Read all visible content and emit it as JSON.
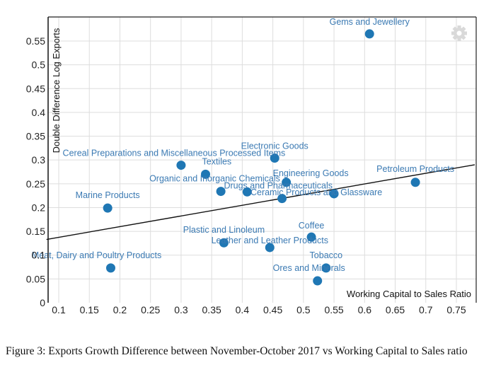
{
  "chart_data": {
    "type": "scatter",
    "title": "",
    "xlabel": "Working Capital to Sales Ratio",
    "ylabel": "Double Difference Log Exports",
    "xlim": [
      0.08,
      0.78
    ],
    "ylim": [
      0,
      0.6
    ],
    "grid": true,
    "x_ticks": [
      0.1,
      0.15,
      0.2,
      0.25,
      0.3,
      0.35,
      0.4,
      0.45,
      0.5,
      0.55,
      0.6,
      0.65,
      0.7,
      0.75
    ],
    "y_ticks": [
      0,
      0.05,
      0.1,
      0.15,
      0.2,
      0.25,
      0.3,
      0.35,
      0.4,
      0.45,
      0.5,
      0.55
    ],
    "x_tick_labels": [
      "0.1",
      "0.15",
      "0.2",
      "0.25",
      "0.3",
      "0.35",
      "0.4",
      "0.45",
      "0.5",
      "0.55",
      "0.6",
      "0.65",
      "0.7",
      "0.75"
    ],
    "y_tick_labels": [
      "0",
      "0.05",
      "0.1",
      "0.15",
      "0.2",
      "0.25",
      "0.3",
      "0.35",
      "0.4",
      "0.45",
      "0.5",
      "0.55"
    ],
    "point_color": "#1f77b4",
    "label_color": "#3b7ab3",
    "points": [
      {
        "label": "Gems and Jewellery",
        "x": 0.608,
        "y": 0.565
      },
      {
        "label": "Cereal Preparations and Miscellaneous Processed Items",
        "x": 0.3,
        "y": 0.289
      },
      {
        "label": "Textiles",
        "x": 0.34,
        "y": 0.27
      },
      {
        "label": "Electronic Goods",
        "x": 0.453,
        "y": 0.304
      },
      {
        "label": "Organic and Inorganic Chemicals",
        "x": 0.365,
        "y": 0.234
      },
      {
        "label": "Drugs and Pharmaceuticals",
        "x": 0.408,
        "y": 0.233
      },
      {
        "label": "Engineering Goods",
        "x": 0.472,
        "y": 0.253
      },
      {
        "label": "Ceramic Products and Glassware",
        "x": 0.55,
        "y": 0.229
      },
      {
        "label": "",
        "x": 0.465,
        "y": 0.219
      },
      {
        "label": "Petroleum Products",
        "x": 0.683,
        "y": 0.253
      },
      {
        "label": "Marine Products",
        "x": 0.18,
        "y": 0.199
      },
      {
        "label": "Plastic and Linoleum",
        "x": 0.37,
        "y": 0.126
      },
      {
        "label": "Leather and Leather Products",
        "x": 0.445,
        "y": 0.116
      },
      {
        "label": "Coffee",
        "x": 0.513,
        "y": 0.138
      },
      {
        "label": "Tobacco",
        "x": 0.537,
        "y": 0.073
      },
      {
        "label": "Ores and Minerals",
        "x": 0.523,
        "y": 0.046
      },
      {
        "label": "Meat, Dairy and Poultry Products",
        "x": 0.185,
        "y": 0.073
      }
    ],
    "trendline": {
      "x": [
        0.08,
        0.78
      ],
      "y": [
        0.133,
        0.29
      ]
    },
    "settings_icon": "gear-icon"
  },
  "caption": "Figure 3: Exports Growth Difference between November-October 2017 vs Working Capital to Sales ratio"
}
